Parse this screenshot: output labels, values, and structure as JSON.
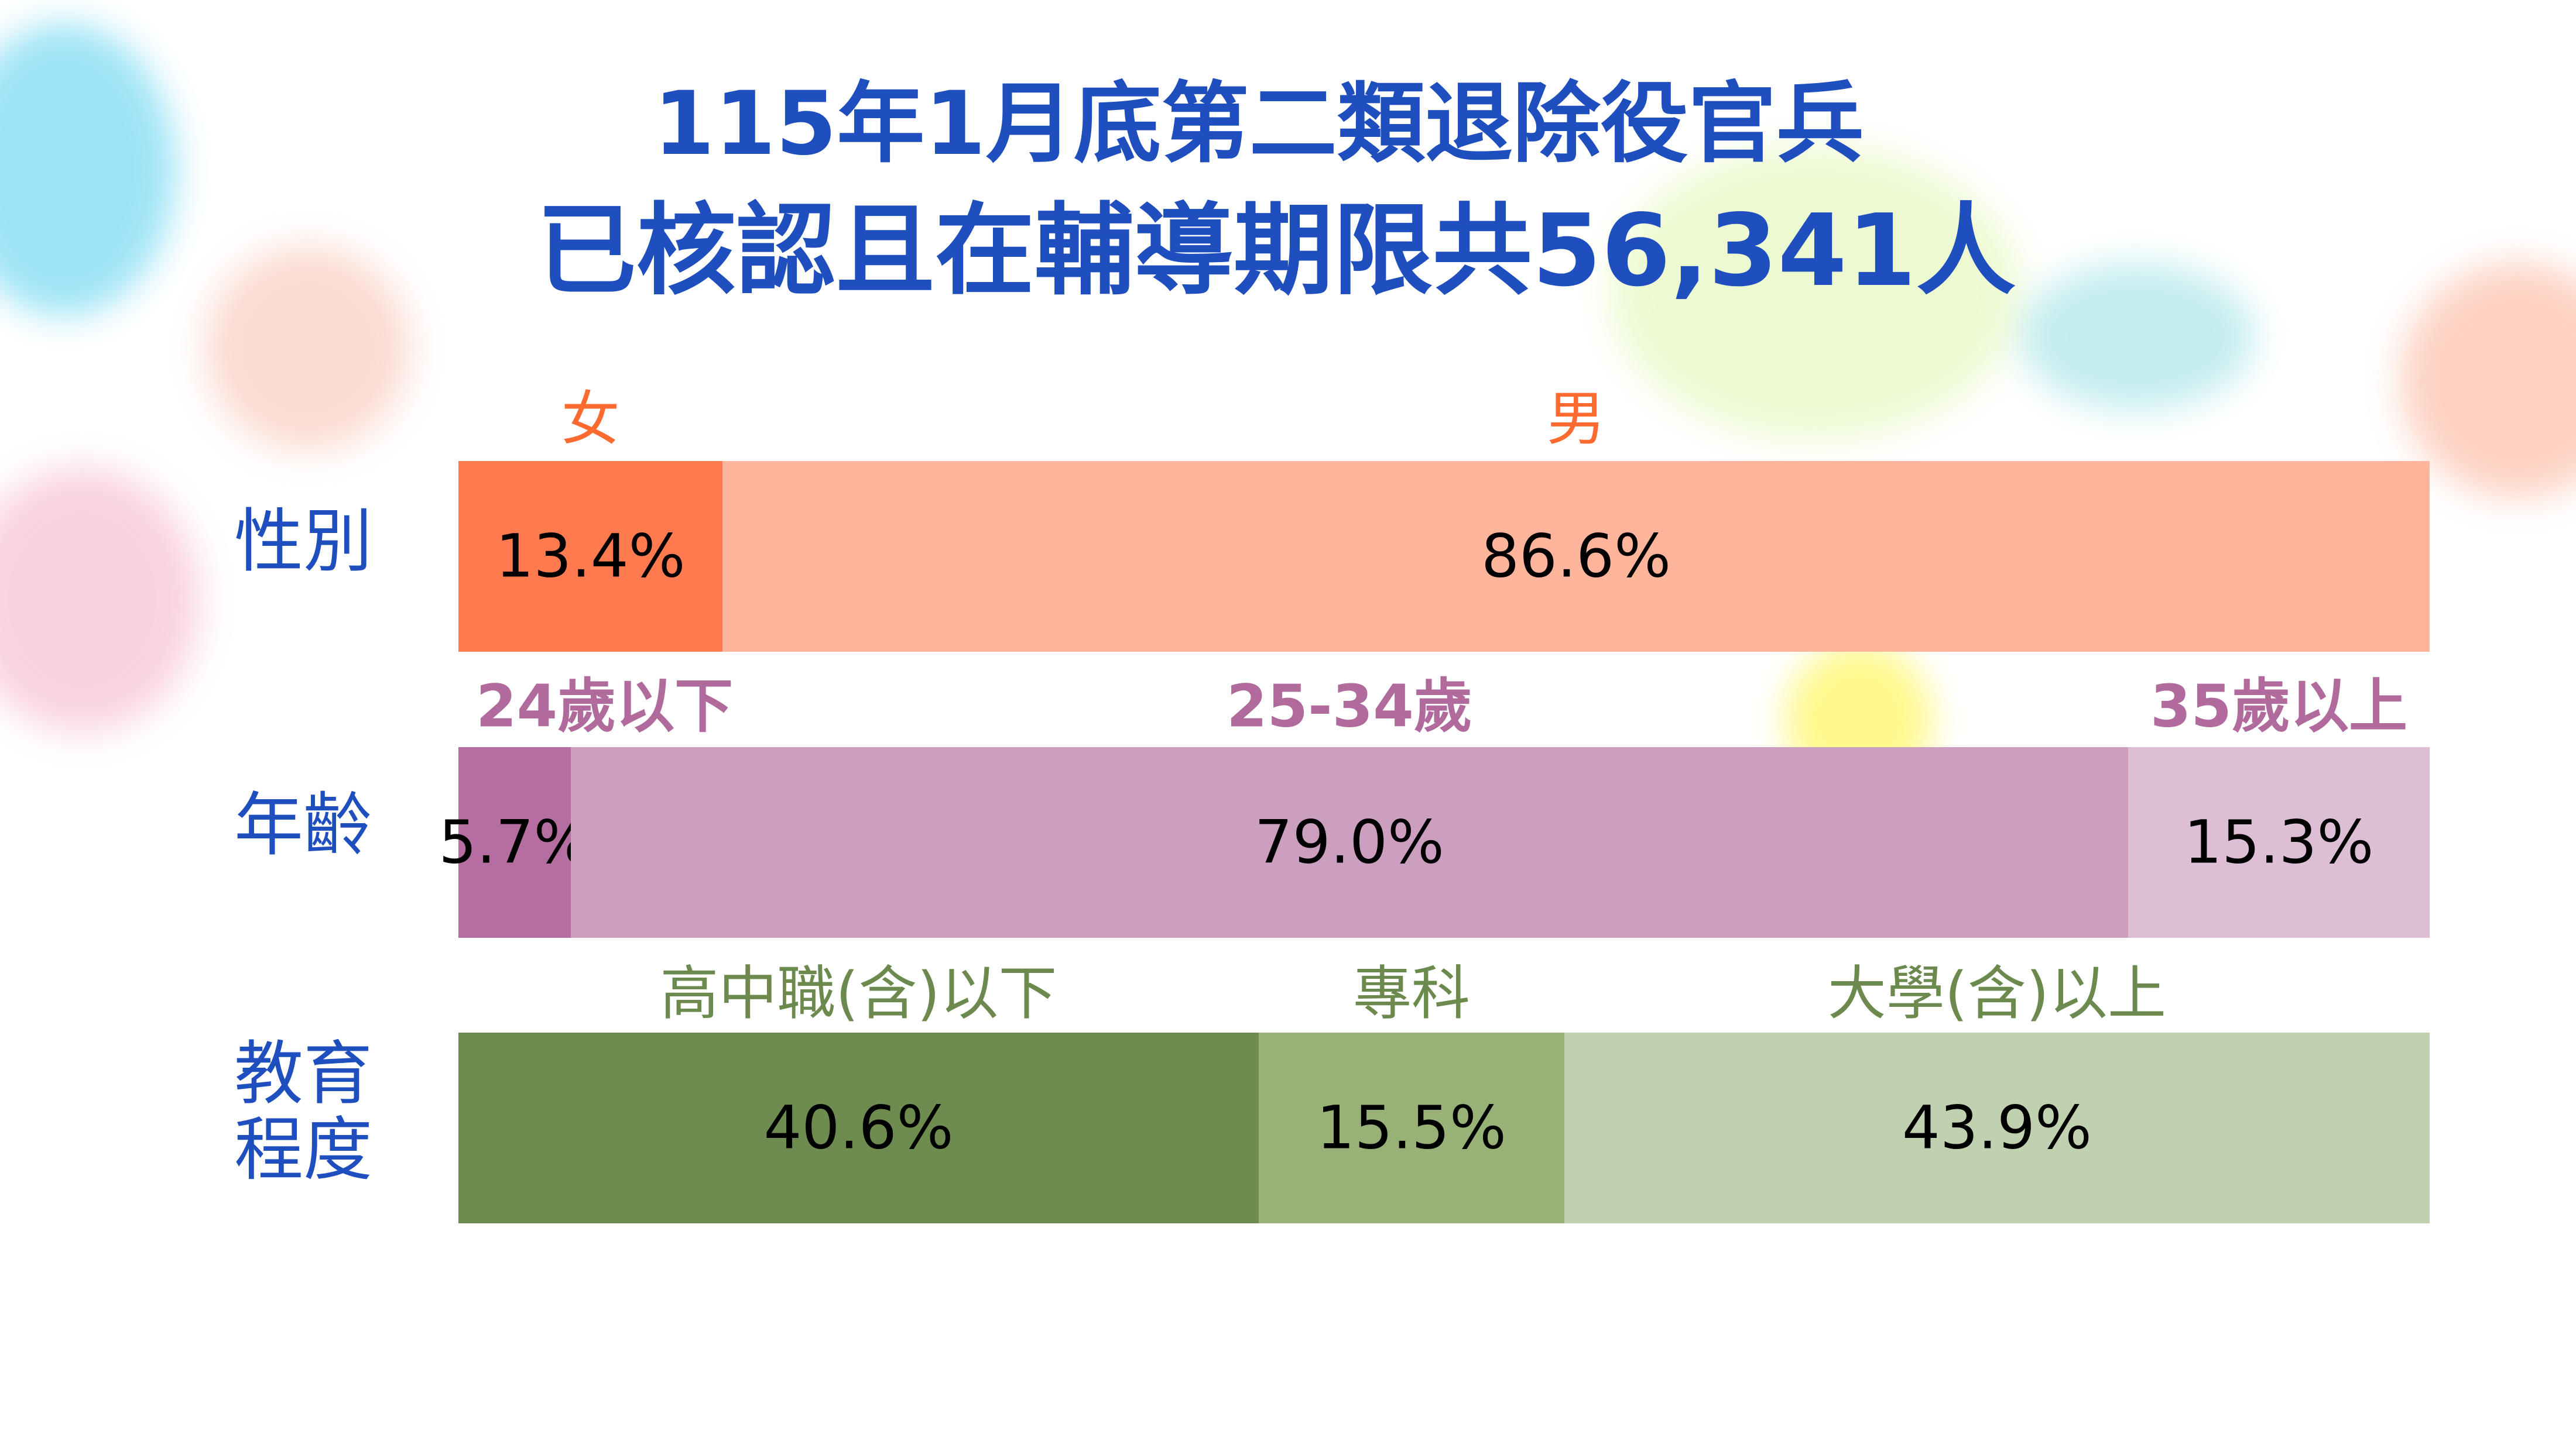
{
  "title": {
    "line1": "115年1月底第二類退除役官兵",
    "line2": "已核認且在輔導期限共56,341人"
  },
  "chart_data": {
    "type": "bar",
    "orientation": "horizontal-stacked-100",
    "rows": [
      {
        "label": "性別",
        "label_color": "#ff6a30",
        "label_bold": false,
        "segments": [
          {
            "name": "女",
            "value": 13.4,
            "display": "13.4%",
            "color": "#ff7b4f"
          },
          {
            "name": "男",
            "value": 86.6,
            "display": "86.6%",
            "color": "#feb59c"
          }
        ]
      },
      {
        "label": "年齡",
        "label_color": "#b06a9c",
        "label_bold": true,
        "segments": [
          {
            "name": "24歲以下",
            "value": 5.7,
            "display": "5.7%",
            "color": "#b46ea0"
          },
          {
            "name": "25-34歲",
            "value": 79.0,
            "display": "79.0%",
            "color": "#cc9fc1"
          },
          {
            "name": "35歲以上",
            "value": 15.3,
            "display": "15.3%",
            "color": "#ddbfd5"
          }
        ]
      },
      {
        "label": "教育\n程度",
        "label_color": "#6d8a4e",
        "label_bold": false,
        "segments": [
          {
            "name": "高中職(含)以下",
            "value": 40.6,
            "display": "40.6%",
            "color": "#6e8c4f"
          },
          {
            "name": "專科",
            "value": 15.5,
            "display": "15.5%",
            "color": "#97b177"
          },
          {
            "name": "大學(含)以上",
            "value": 43.9,
            "display": "43.9%",
            "color": "#c0d1af"
          }
        ]
      }
    ],
    "xlim": [
      0,
      100
    ]
  }
}
